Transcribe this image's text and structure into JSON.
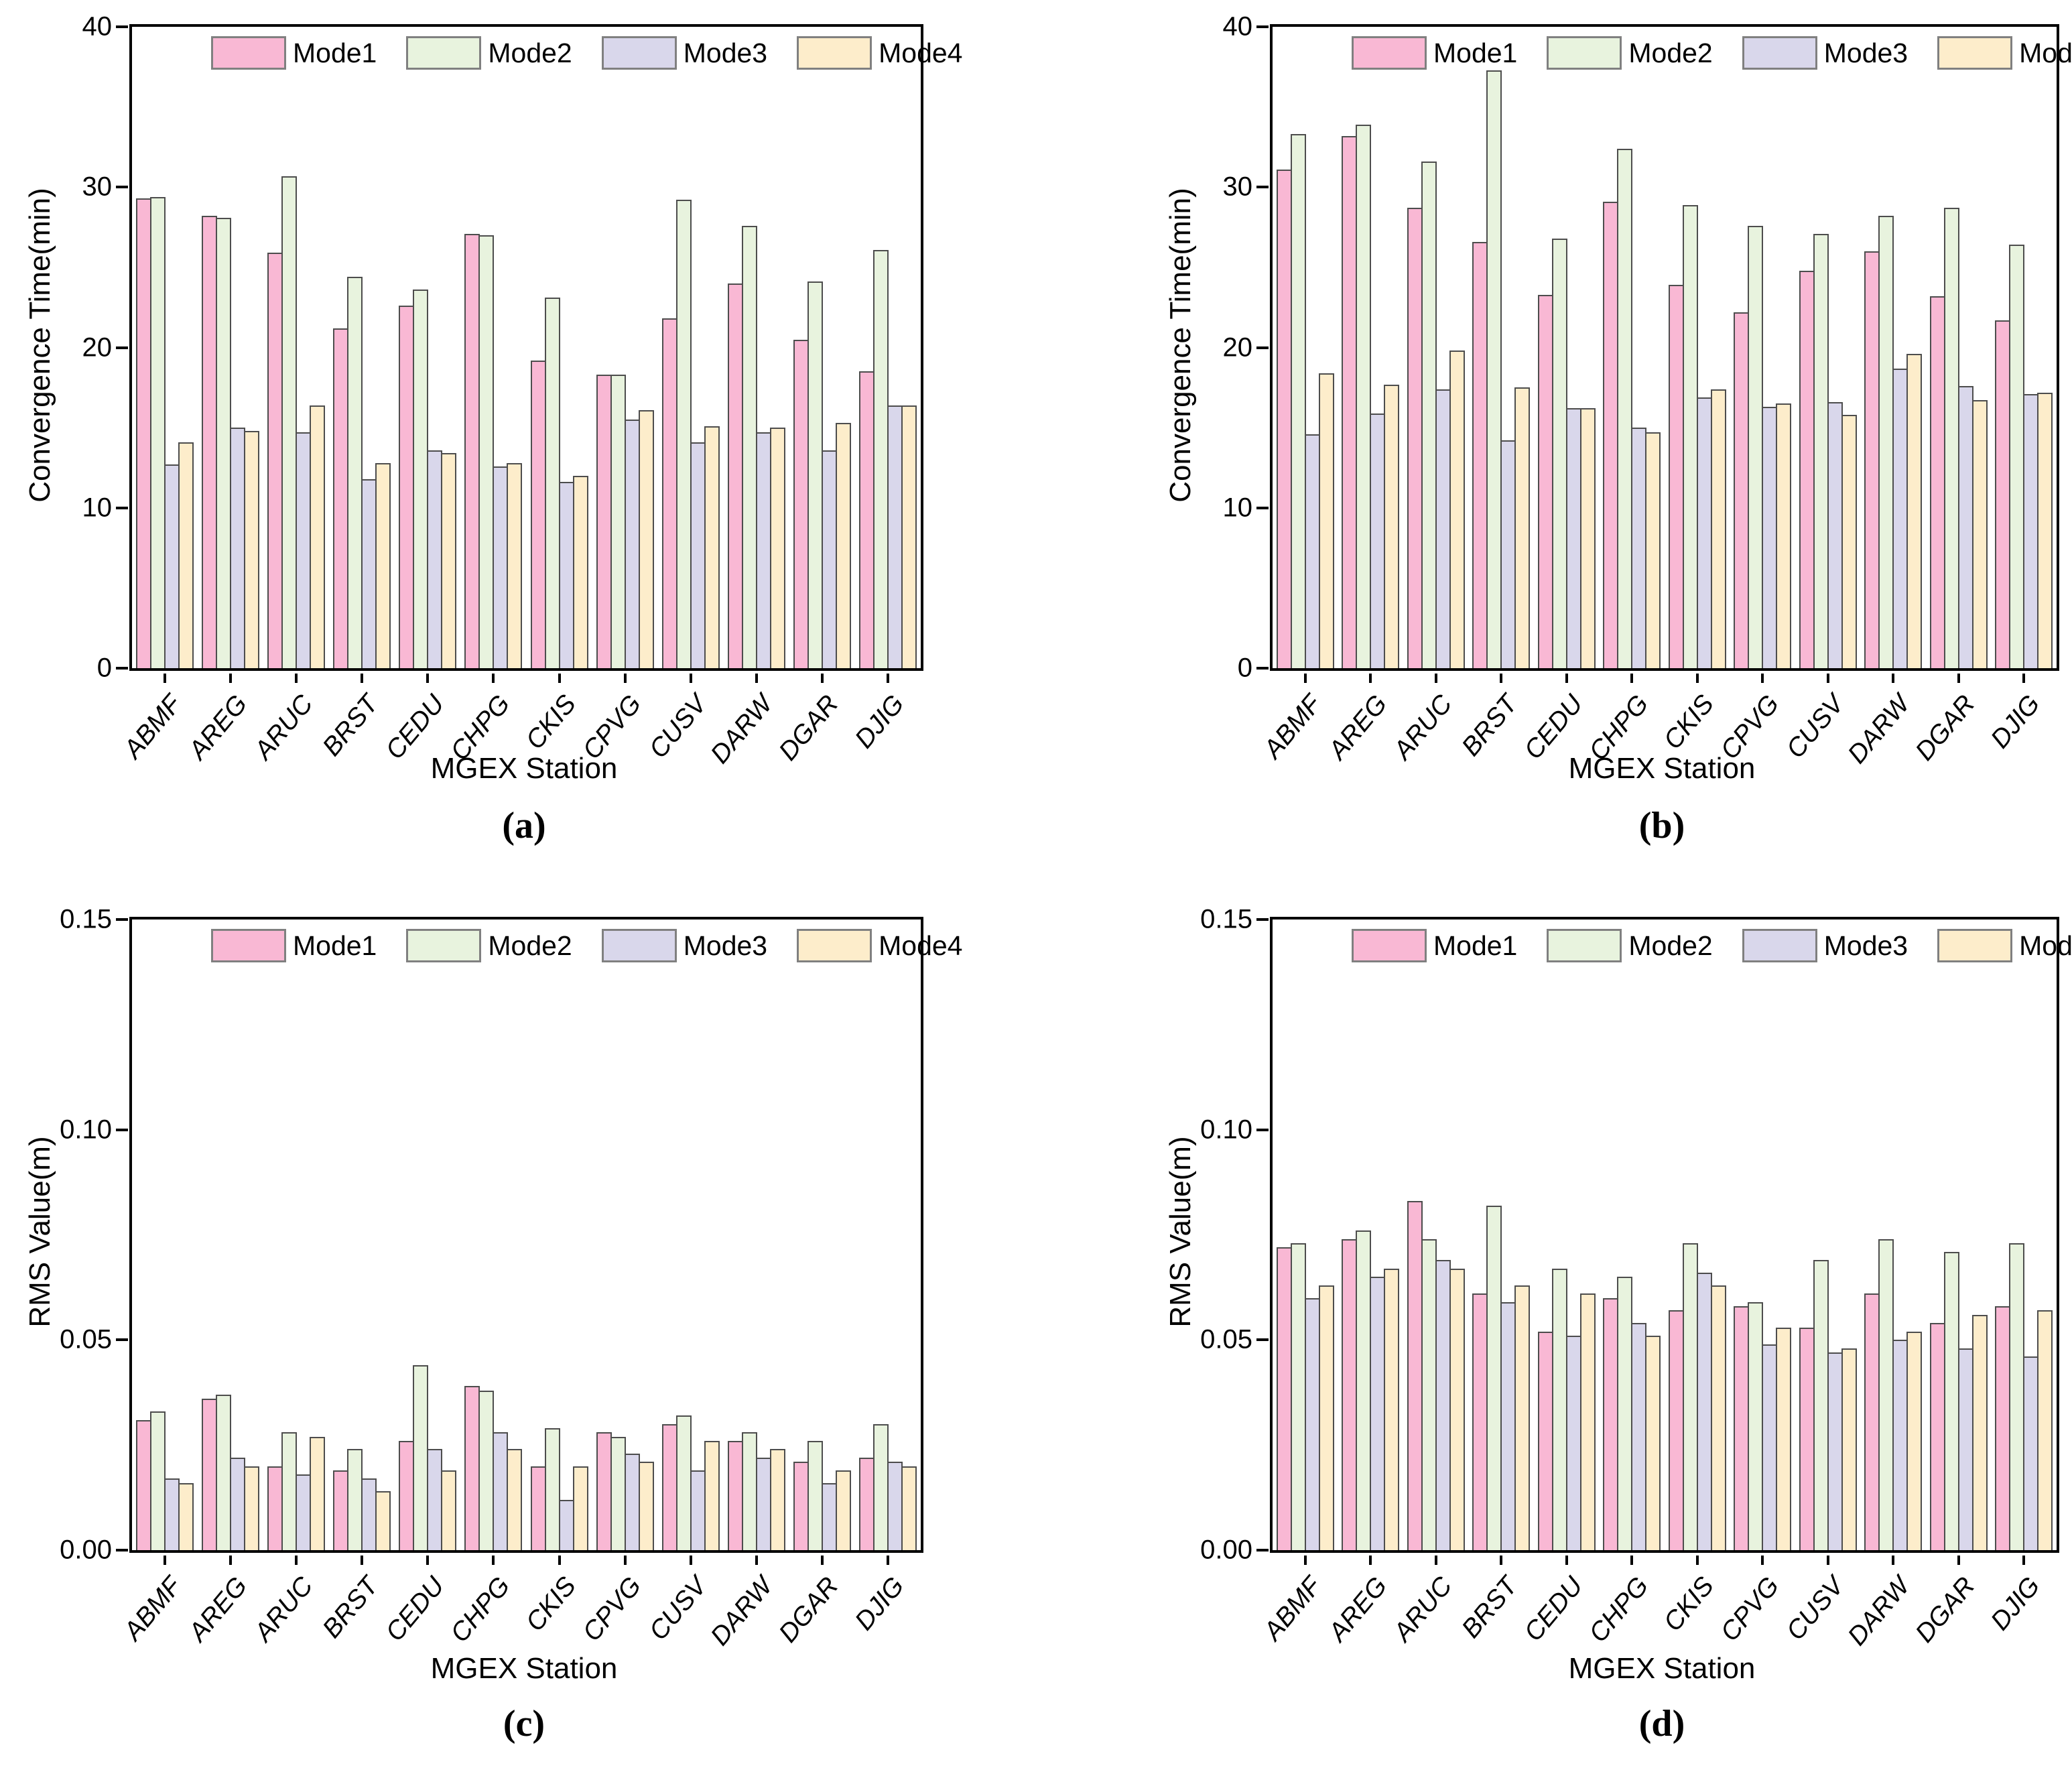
{
  "figure": {
    "background": "#ffffff"
  },
  "legend": {
    "labels": [
      "Mode1",
      "Mode2",
      "Mode3",
      "Mode4"
    ],
    "colors": [
      "#f9b8d4",
      "#e8f3de",
      "#d9d7eb",
      "#fdedcb"
    ],
    "bar_edge_color": "#4d4d4d",
    "swatch_edge_color": "#808080",
    "position": "top-inside-horizontal"
  },
  "chart_data": [
    {
      "id": "a",
      "type": "bar",
      "caption": "(a)",
      "xlabel": "MGEX Station",
      "ylabel": "Convergence Time(min)",
      "ylim": [
        0,
        40
      ],
      "grid": false,
      "yticks": [
        {
          "v": 0,
          "label": "0"
        },
        {
          "v": 10,
          "label": "10"
        },
        {
          "v": 20,
          "label": "20"
        },
        {
          "v": 30,
          "label": "30"
        },
        {
          "v": 40,
          "label": "40"
        }
      ],
      "categories": [
        "ABMF",
        "AREG",
        "ARUC",
        "BRST",
        "CEDU",
        "CHPG",
        "CKIS",
        "CPVG",
        "CUSV",
        "DARW",
        "DGAR",
        "DJIG"
      ],
      "series": [
        {
          "name": "Mode1",
          "values": [
            29.3,
            28.2,
            25.9,
            21.2,
            22.6,
            27.1,
            19.2,
            18.3,
            21.8,
            24.0,
            20.5,
            18.5
          ]
        },
        {
          "name": "Mode2",
          "values": [
            29.4,
            28.1,
            30.7,
            24.4,
            23.6,
            27.0,
            23.1,
            18.3,
            29.2,
            27.6,
            24.1,
            26.1
          ]
        },
        {
          "name": "Mode3",
          "values": [
            12.7,
            15.0,
            14.7,
            11.8,
            13.6,
            12.6,
            11.6,
            15.5,
            14.1,
            14.7,
            13.6,
            16.4
          ]
        },
        {
          "name": "Mode4",
          "values": [
            14.1,
            14.8,
            16.4,
            12.8,
            13.4,
            12.8,
            12.0,
            16.1,
            15.1,
            15.0,
            15.3,
            16.4
          ]
        }
      ]
    },
    {
      "id": "b",
      "type": "bar",
      "caption": "(b)",
      "xlabel": "MGEX Station",
      "ylabel": "Convergence Time(min)",
      "ylim": [
        0,
        40
      ],
      "grid": false,
      "yticks": [
        {
          "v": 0,
          "label": "0"
        },
        {
          "v": 10,
          "label": "10"
        },
        {
          "v": 20,
          "label": "20"
        },
        {
          "v": 30,
          "label": "30"
        },
        {
          "v": 40,
          "label": "40"
        }
      ],
      "categories": [
        "ABMF",
        "AREG",
        "ARUC",
        "BRST",
        "CEDU",
        "CHPG",
        "CKIS",
        "CPVG",
        "CUSV",
        "DARW",
        "DGAR",
        "DJIG"
      ],
      "series": [
        {
          "name": "Mode1",
          "values": [
            31.1,
            33.2,
            28.7,
            26.6,
            23.3,
            29.1,
            23.9,
            22.2,
            24.8,
            26.0,
            23.2,
            21.7
          ]
        },
        {
          "name": "Mode2",
          "values": [
            33.3,
            33.9,
            31.6,
            37.3,
            26.8,
            32.4,
            28.9,
            27.6,
            27.1,
            28.2,
            28.7,
            26.4
          ]
        },
        {
          "name": "Mode3",
          "values": [
            14.6,
            15.9,
            17.4,
            14.2,
            16.2,
            15.0,
            16.9,
            16.3,
            16.6,
            18.7,
            17.6,
            17.1
          ]
        },
        {
          "name": "Mode4",
          "values": [
            18.4,
            17.7,
            19.8,
            17.5,
            16.2,
            14.7,
            17.4,
            16.5,
            15.8,
            19.6,
            16.7,
            17.2
          ]
        }
      ]
    },
    {
      "id": "c",
      "type": "bar",
      "caption": "(c)",
      "xlabel": "MGEX Station",
      "ylabel": "RMS Value(m)",
      "ylim": [
        0,
        0.15
      ],
      "grid": false,
      "yticks": [
        {
          "v": 0,
          "label": "0.00"
        },
        {
          "v": 0.05,
          "label": "0.05"
        },
        {
          "v": 0.1,
          "label": "0.10"
        },
        {
          "v": 0.15,
          "label": "0.15"
        }
      ],
      "categories": [
        "ABMF",
        "AREG",
        "ARUC",
        "BRST",
        "CEDU",
        "CHPG",
        "CKIS",
        "CPVG",
        "CUSV",
        "DARW",
        "DGAR",
        "DJIG"
      ],
      "series": [
        {
          "name": "Mode1",
          "values": [
            0.031,
            0.036,
            0.02,
            0.019,
            0.026,
            0.039,
            0.02,
            0.028,
            0.03,
            0.026,
            0.021,
            0.022
          ]
        },
        {
          "name": "Mode2",
          "values": [
            0.033,
            0.037,
            0.028,
            0.024,
            0.044,
            0.038,
            0.029,
            0.027,
            0.032,
            0.028,
            0.026,
            0.03
          ]
        },
        {
          "name": "Mode3",
          "values": [
            0.017,
            0.022,
            0.018,
            0.017,
            0.024,
            0.028,
            0.012,
            0.023,
            0.019,
            0.022,
            0.016,
            0.021
          ]
        },
        {
          "name": "Mode4",
          "values": [
            0.016,
            0.02,
            0.027,
            0.014,
            0.019,
            0.024,
            0.02,
            0.021,
            0.026,
            0.024,
            0.019,
            0.02
          ]
        }
      ]
    },
    {
      "id": "d",
      "type": "bar",
      "caption": "(d)",
      "xlabel": "MGEX Station",
      "ylabel": "RMS Value(m)",
      "ylim": [
        0,
        0.15
      ],
      "grid": false,
      "yticks": [
        {
          "v": 0,
          "label": "0.00"
        },
        {
          "v": 0.05,
          "label": "0.05"
        },
        {
          "v": 0.1,
          "label": "0.10"
        },
        {
          "v": 0.15,
          "label": "0.15"
        }
      ],
      "categories": [
        "ABMF",
        "AREG",
        "ARUC",
        "BRST",
        "CEDU",
        "CHPG",
        "CKIS",
        "CPVG",
        "CUSV",
        "DARW",
        "DGAR",
        "DJIG"
      ],
      "series": [
        {
          "name": "Mode1",
          "values": [
            0.072,
            0.074,
            0.083,
            0.061,
            0.052,
            0.06,
            0.057,
            0.058,
            0.053,
            0.061,
            0.054,
            0.058
          ]
        },
        {
          "name": "Mode2",
          "values": [
            0.073,
            0.076,
            0.074,
            0.082,
            0.067,
            0.065,
            0.073,
            0.059,
            0.069,
            0.074,
            0.071,
            0.073
          ]
        },
        {
          "name": "Mode3",
          "values": [
            0.06,
            0.065,
            0.069,
            0.059,
            0.051,
            0.054,
            0.066,
            0.049,
            0.047,
            0.05,
            0.048,
            0.046
          ]
        },
        {
          "name": "Mode4",
          "values": [
            0.063,
            0.067,
            0.067,
            0.063,
            0.061,
            0.051,
            0.063,
            0.053,
            0.048,
            0.052,
            0.056,
            0.057
          ]
        }
      ]
    }
  ]
}
